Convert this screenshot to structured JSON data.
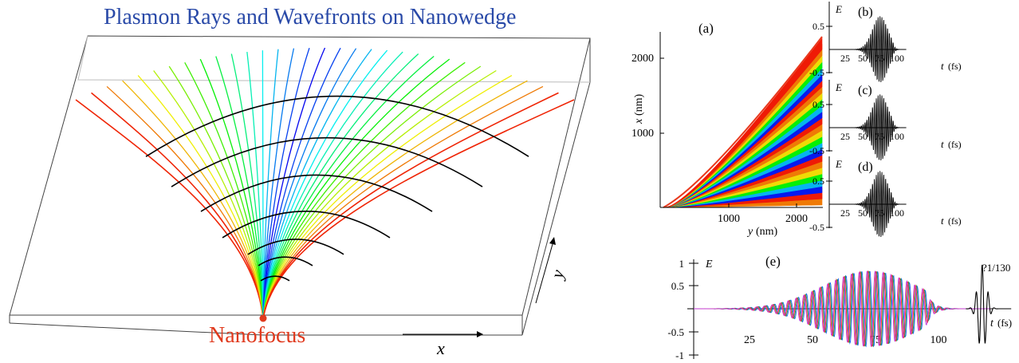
{
  "diagram": {
    "title": "Plasmon Rays and Wavefronts on Nanowedge",
    "focus_label": "Nanofocus",
    "x_label": "x",
    "y_label": "y",
    "colors": {
      "title": "#2a4aa8",
      "focus": "#e03a1e",
      "wavefront": "#000000"
    }
  },
  "chart_data": [
    {
      "type": "area",
      "panel_label": "(a)",
      "xlabel_italic": "y",
      "xlabel_unit": "(nm)",
      "ylabel_italic": "x",
      "ylabel_unit": "(nm)",
      "x_ticks": [
        "1000",
        "2000"
      ],
      "y_ticks": [
        "1000",
        "2000"
      ],
      "xlim": [
        0,
        2400
      ],
      "ylim": [
        0,
        2400
      ]
    },
    {
      "type": "line",
      "panel_label": "(b)",
      "ylabel": "E",
      "xlabel_italic": "t",
      "xlabel_unit": "(fs)",
      "x_ticks": [
        "25",
        "50",
        "75",
        "100"
      ],
      "y_ticks": [
        "0.5",
        "-0.5"
      ],
      "xlim": [
        0,
        110
      ],
      "ylim": [
        -0.75,
        0.75
      ]
    },
    {
      "type": "line",
      "panel_label": "(c)",
      "ylabel": "E",
      "xlabel_italic": "t",
      "xlabel_unit": "(fs)",
      "x_ticks": [
        "25",
        "50",
        "75",
        "100"
      ],
      "y_ticks": [
        "0.5",
        "-0.5"
      ],
      "xlim": [
        0,
        110
      ],
      "ylim": [
        -0.75,
        0.75
      ]
    },
    {
      "type": "line",
      "panel_label": "(d)",
      "ylabel": "E",
      "xlabel_italic": "t",
      "xlabel_unit": "(fs)",
      "x_ticks": [
        "25",
        "50",
        "75",
        "100"
      ],
      "y_ticks": [
        "0.5",
        "-0.5"
      ],
      "xlim": [
        0,
        110
      ],
      "ylim": [
        -0.75,
        0.75
      ]
    },
    {
      "type": "line",
      "panel_label": "(e)",
      "ylabel": "E",
      "xlabel_italic": "t",
      "xlabel_unit": "(fs)",
      "x_ticks": [
        "25",
        "50",
        "75",
        "100"
      ],
      "y_ticks": [
        "1",
        "0.5",
        "-0.5",
        "-1"
      ],
      "annotation": "?1/130",
      "xlim": [
        0,
        130
      ],
      "ylim": [
        -1.05,
        1.05
      ]
    }
  ]
}
